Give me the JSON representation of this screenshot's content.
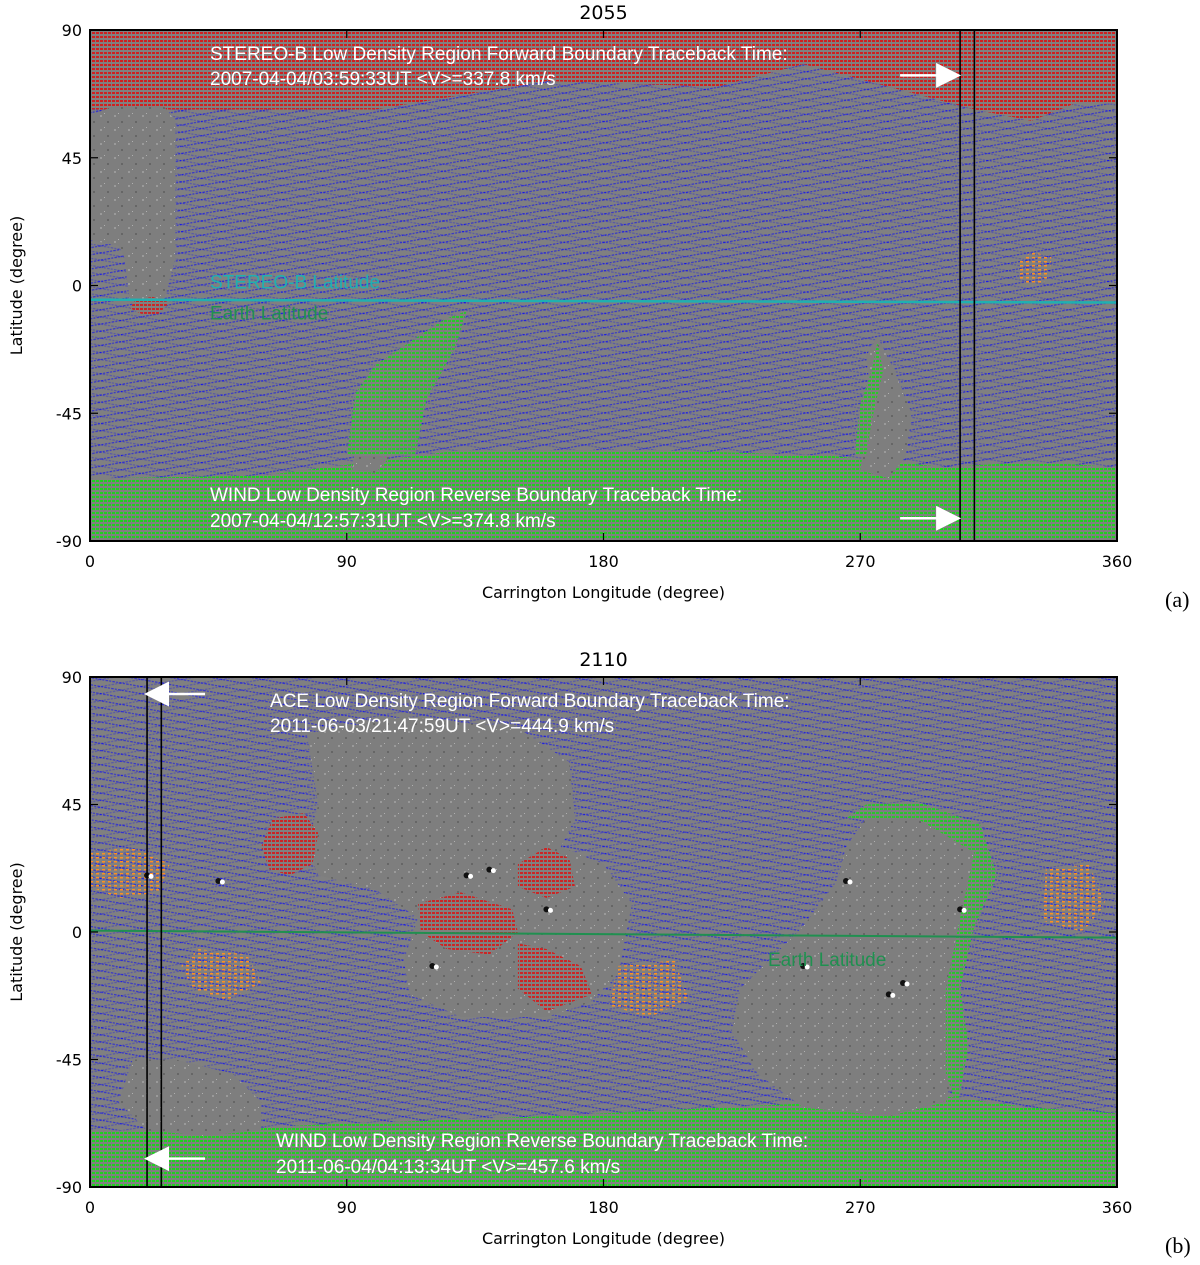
{
  "chart_data": [
    {
      "panel": "(a)",
      "type": "heatmap",
      "title": "2055",
      "xlabel": "Carrington Longitude (degree)",
      "ylabel": "Latitude (degree)",
      "xlim": [
        0,
        360
      ],
      "ylim": [
        -90,
        90
      ],
      "xticks": [
        "0",
        "90",
        "180",
        "270",
        "360"
      ],
      "yticks": [
        "90",
        "45",
        "0",
        "-45",
        "-90"
      ],
      "colors": {
        "background": "#808080",
        "open_field_lines": "#1010f0",
        "forward_region": "#d02020",
        "reverse_region": "#20d020",
        "closed_loops": "#ff9020",
        "spacecraft_latitude": "#20b0b0",
        "earth_latitude": "#209050"
      },
      "annotations": {
        "top_line1": "STEREO-B Low Density Region Forward Boundary Traceback Time:",
        "top_line2": "2007-04-04/03:59:33UT <V>=337.8 km/s",
        "bottom_line1": "WIND Low Density Region Reverse Boundary Traceback Time:",
        "bottom_line2": "2007-04-04/12:57:31UT <V>=374.8 km/s",
        "spacecraft_lat_label": "STEREO-B Latitude",
        "earth_lat_label": "Earth Latitude"
      },
      "boundary_longitudes": [
        305,
        310
      ],
      "spacecraft_latitude": [
        -5,
        -6
      ],
      "earth_latitude": null,
      "arrows": [
        {
          "direction": "right",
          "lat": 74
        },
        {
          "direction": "right",
          "lat": -82
        }
      ]
    },
    {
      "panel": "(b)",
      "type": "heatmap",
      "title": "2110",
      "xlabel": "Carrington Longitude (degree)",
      "ylabel": "Latitude (degree)",
      "xlim": [
        0,
        360
      ],
      "ylim": [
        -90,
        90
      ],
      "xticks": [
        "0",
        "90",
        "180",
        "270",
        "360"
      ],
      "yticks": [
        "90",
        "45",
        "0",
        "-45",
        "-90"
      ],
      "colors": {
        "background": "#808080",
        "open_field_lines": "#1010f0",
        "forward_region": "#d02020",
        "reverse_region": "#20d020",
        "closed_loops": "#ff9020",
        "spacecraft_latitude": "#20b0b0",
        "earth_latitude": "#209050"
      },
      "annotations": {
        "top_line1": "ACE Low Density Region Forward Boundary Traceback Time:",
        "top_line2": "2011-06-03/21:47:59UT <V>=444.9 km/s",
        "bottom_line1": "WIND Low Density Region Reverse Boundary Traceback Time:",
        "bottom_line2": "2011-06-04/04:13:34UT <V>=457.6 km/s",
        "spacecraft_lat_label": "",
        "earth_lat_label": "Earth Latitude"
      },
      "boundary_longitudes": [
        20,
        25
      ],
      "spacecraft_latitude": null,
      "earth_latitude": [
        0.5,
        -2
      ],
      "arrows": [
        {
          "direction": "left",
          "lat": 84
        },
        {
          "direction": "left",
          "lat": -80
        }
      ]
    }
  ]
}
